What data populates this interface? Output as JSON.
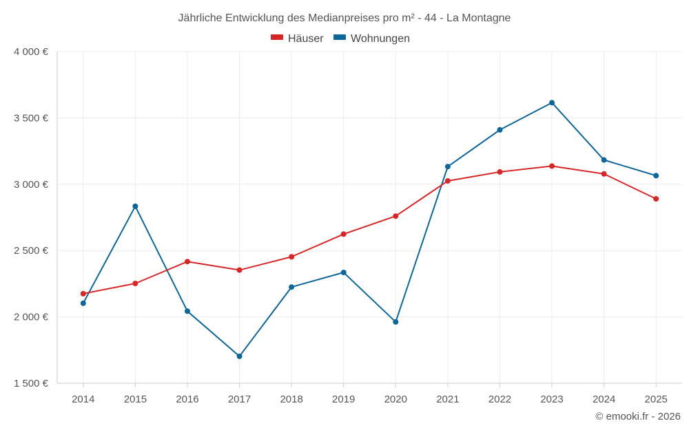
{
  "chart_data": {
    "type": "line",
    "title": "Jährliche Entwicklung des Medianpreises pro m² - 44 - La Montagne",
    "categories": [
      "2014",
      "2015",
      "2016",
      "2017",
      "2018",
      "2019",
      "2020",
      "2021",
      "2022",
      "2023",
      "2024",
      "2025"
    ],
    "series": [
      {
        "name": "Häuser",
        "color": "#d62728",
        "values": [
          2175,
          2252,
          2417,
          2353,
          2453,
          2624,
          2760,
          3025,
          3093,
          3137,
          3078,
          2890
        ]
      },
      {
        "name": "Wohnungen",
        "color": "#0e6597",
        "values": [
          2103,
          2834,
          2043,
          1703,
          2225,
          2335,
          1962,
          3133,
          3410,
          3615,
          3183,
          3065
        ]
      }
    ],
    "y_ticks": [
      "1 500 €",
      "2 000 €",
      "2 500 €",
      "3 000 €",
      "3 500 €",
      "4 000 €"
    ],
    "ylim": [
      1500,
      4000
    ],
    "grid": true,
    "legend_position": "top-center",
    "credit": "© emooki.fr - 2026"
  }
}
